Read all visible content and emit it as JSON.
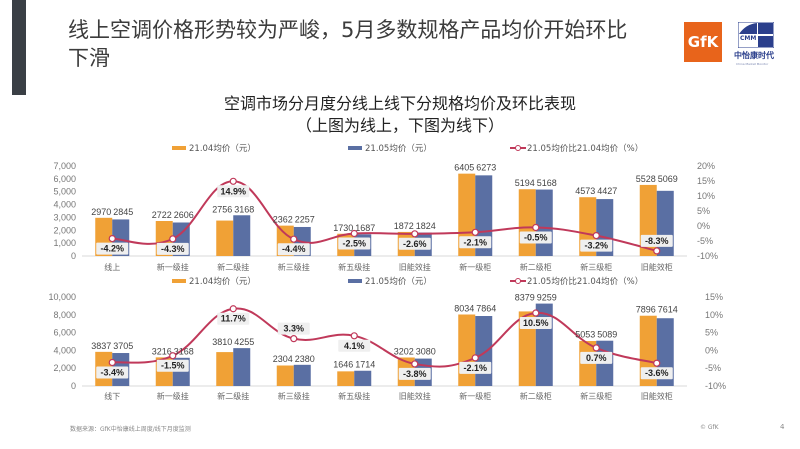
{
  "header": {
    "title": "线上空调价格形势较为严峻，5月多数规格产品均价开始环比下滑",
    "logos": {
      "gfk": "GfK",
      "cmm": "CMM",
      "cmm_cn": "中怡康时代",
      "cmm_en": "China Market Monitor"
    }
  },
  "chart_title": {
    "line1": "空调市场分月度分线上线下分规格均价及环比表现",
    "line2": "（上图为线上，下图为线下）"
  },
  "footer": {
    "source": "数据来源：GfK中怡康线上周度/线下月度监测",
    "copyright": "© GfK",
    "page": "4"
  },
  "colors": {
    "apr": "#f0a136",
    "may": "#5a6fa3",
    "line": "#c0395a",
    "label_bg": "#efefef"
  },
  "chart_data": [
    {
      "type": "bar",
      "title": "线上",
      "categories": [
        "线上",
        "新一级挂",
        "新二级挂",
        "新三级挂",
        "新五级挂",
        "旧能效挂",
        "新一级柜",
        "新二级柜",
        "新三级柜",
        "旧能效柜"
      ],
      "series": [
        {
          "name": "21.04均价（元）",
          "axis": "left",
          "values": [
            2970,
            2722,
            2756,
            2362,
            1730,
            1872,
            6405,
            5194,
            4573,
            5528
          ]
        },
        {
          "name": "21.05均价（元）",
          "axis": "left",
          "values": [
            2845,
            2606,
            3168,
            2257,
            1687,
            1824,
            6273,
            5168,
            4427,
            5069
          ]
        },
        {
          "name": "21.05均价比21.04均价（%）",
          "axis": "right",
          "type": "line",
          "values": [
            -4.2,
            -4.3,
            14.9,
            -4.4,
            -2.5,
            -2.6,
            -2.1,
            -0.5,
            -3.2,
            -8.3
          ]
        }
      ],
      "y_left": {
        "range": [
          0,
          7000
        ],
        "ticks": [
          "0",
          "1,000",
          "2,000",
          "3,000",
          "4,000",
          "5,000",
          "6,000",
          "7,000"
        ],
        "tick_values": [
          0,
          1000,
          2000,
          3000,
          4000,
          5000,
          6000,
          7000
        ]
      },
      "y_right": {
        "range": [
          -10,
          20
        ],
        "ticks": [
          "-10%",
          "-5%",
          "0%",
          "5%",
          "10%",
          "15%",
          "20%"
        ],
        "tick_values": [
          -10,
          -5,
          0,
          5,
          10,
          15,
          20
        ]
      },
      "legend": "top",
      "grid": false
    },
    {
      "type": "bar",
      "title": "线下",
      "categories": [
        "线下",
        "新一级挂",
        "新二级挂",
        "新三级挂",
        "新五级挂",
        "旧能效挂",
        "新一级柜",
        "新二级柜",
        "新三级柜",
        "旧能效柜"
      ],
      "series": [
        {
          "name": "21.04均价（元）",
          "axis": "left",
          "values": [
            3837,
            3216,
            3810,
            2304,
            1646,
            3202,
            8034,
            8379,
            5053,
            7896
          ]
        },
        {
          "name": "21.05均价（元）",
          "axis": "left",
          "values": [
            3705,
            3168,
            4255,
            2380,
            1714,
            3080,
            7864,
            9259,
            5089,
            7614
          ]
        },
        {
          "name": "21.05均价比21.04均价（%）",
          "axis": "right",
          "type": "line",
          "values": [
            -3.4,
            -1.5,
            11.7,
            3.3,
            4.1,
            -3.8,
            -2.1,
            10.5,
            0.7,
            -3.6
          ]
        }
      ],
      "y_left": {
        "range": [
          0,
          10000
        ],
        "ticks": [
          "0",
          "2,000",
          "4,000",
          "6,000",
          "8,000",
          "10,000"
        ],
        "tick_values": [
          0,
          2000,
          4000,
          6000,
          8000,
          10000
        ]
      },
      "y_right": {
        "range": [
          -10,
          15
        ],
        "ticks": [
          "-10%",
          "-5%",
          "0%",
          "5%",
          "10%",
          "15%"
        ],
        "tick_values": [
          -10,
          -5,
          0,
          5,
          10,
          15
        ]
      },
      "legend": "top",
      "grid": false
    }
  ]
}
